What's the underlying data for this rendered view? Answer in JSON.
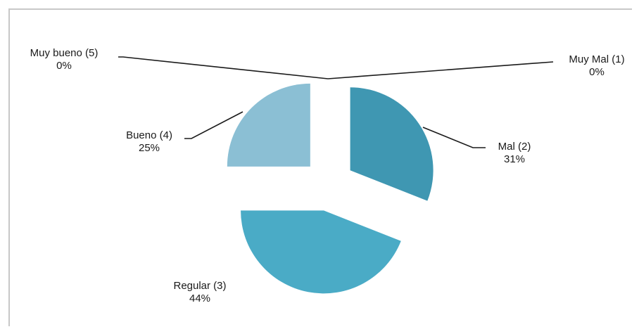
{
  "chart_data": {
    "type": "pie",
    "title": "",
    "exploded": true,
    "start": "clockwise-from-top",
    "categories": [
      "Muy Mal (1)",
      "Mal (2)",
      "Regular (3)",
      "Bueno (4)",
      "Muy bueno (5)"
    ],
    "values": [
      0,
      31,
      44,
      25,
      0
    ],
    "labels": [
      {
        "name": "Muy Mal (1)",
        "value": "0%"
      },
      {
        "name": "Mal (2)",
        "value": "31%"
      },
      {
        "name": "Regular (3)",
        "value": "44%"
      },
      {
        "name": "Bueno (4)",
        "value": "25%"
      },
      {
        "name": "Muy bueno (5)",
        "value": "0%"
      }
    ],
    "colors": [
      "#2f7f9c",
      "#3f97b2",
      "#4aabc6",
      "#8bbfd4",
      "#b7d6e3"
    ]
  }
}
